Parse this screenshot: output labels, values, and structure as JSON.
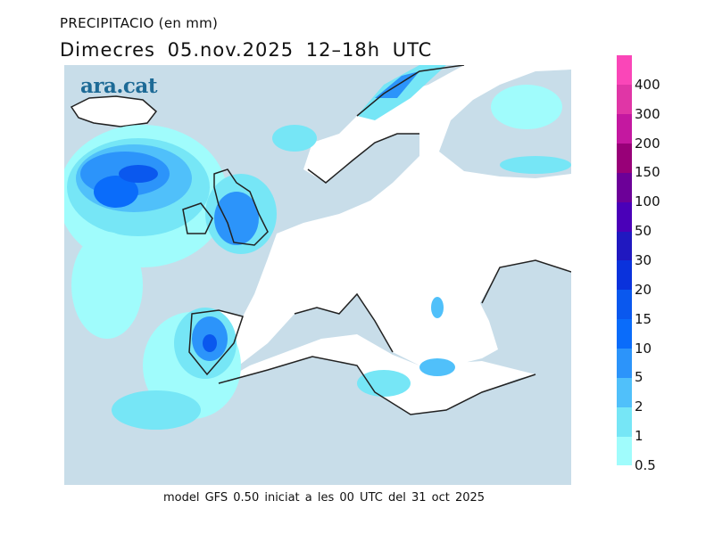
{
  "header": {
    "title": "PRECIPITACIO (en mm)",
    "subtitle": "Dimecres  05.nov.2025 12–18h UTC"
  },
  "logo": "ara.cat",
  "footer": "model GFS 0.50 iniciat a les 00 UTC del 31 oct 2025",
  "legend": {
    "items": [
      {
        "label": "0.5",
        "color": "#a0fcfc"
      },
      {
        "label": "1",
        "color": "#76e6f6"
      },
      {
        "label": "2",
        "color": "#50c0fa"
      },
      {
        "label": "5",
        "color": "#2c94fa"
      },
      {
        "label": "10",
        "color": "#0a6cfa"
      },
      {
        "label": "15",
        "color": "#0a58ee"
      },
      {
        "label": "20",
        "color": "#0a32dc"
      },
      {
        "label": "30",
        "color": "#2018c0"
      },
      {
        "label": "50",
        "color": "#4a00b8"
      },
      {
        "label": "100",
        "color": "#6c0098"
      },
      {
        "label": "150",
        "color": "#980078"
      },
      {
        "label": "200",
        "color": "#c418a0"
      },
      {
        "label": "300",
        "color": "#e036a6"
      },
      {
        "label": "400",
        "color": "#fa46b8"
      }
    ]
  },
  "colors": {
    "background_domain": "#c8dde9",
    "masked": "#ffffff",
    "coast": "#222222"
  }
}
